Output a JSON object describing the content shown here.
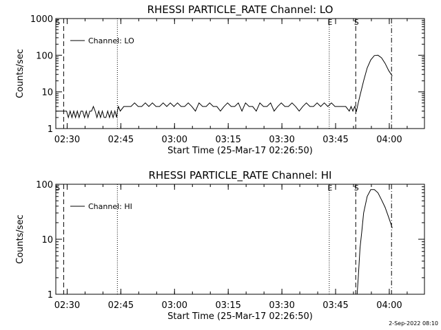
{
  "timestamp": "2-Sep-2022 08:10",
  "chart_data": [
    {
      "type": "line",
      "title": "RHESSI PARTICLE_RATE Channel: LO",
      "xlabel": "Start Time (25-Mar-17 02:26:50)",
      "ylabel": "Counts/sec",
      "x_tick_labels": [
        "02:30",
        "02:45",
        "03:00",
        "03:15",
        "03:30",
        "03:45",
        "04:00"
      ],
      "x_tick_minutes": [
        3.17,
        18.17,
        33.17,
        48.17,
        63.17,
        78.17,
        93.17
      ],
      "xlim_minutes": [
        0,
        103
      ],
      "y_scale": "log",
      "ylim": [
        1,
        1000
      ],
      "y_tick_values": [
        1,
        10,
        100,
        1000
      ],
      "y_tick_labels": [
        "1",
        "10",
        "100",
        "1000"
      ],
      "legend": {
        "label": "Channel: LO",
        "position": "top-left"
      },
      "markers": [
        {
          "minute": 0.3,
          "label": "S",
          "style": "solid"
        },
        {
          "minute": 2.2,
          "label": "",
          "style": "dashed"
        },
        {
          "minute": 17.2,
          "label": "",
          "style": "dotted"
        },
        {
          "minute": 76.4,
          "label": "E",
          "style": "dotted"
        },
        {
          "minute": 83.8,
          "label": "S",
          "style": "dashed"
        },
        {
          "minute": 93.8,
          "label": "",
          "style": "dashdot"
        }
      ],
      "series": [
        {
          "name": "Channel: LO",
          "x": [
            0,
            2,
            3,
            3.5,
            4,
            4.5,
            5,
            5.5,
            6,
            6.5,
            7,
            7.5,
            8,
            8.5,
            9,
            9.5,
            10,
            10.5,
            11,
            11.5,
            12,
            12.5,
            13,
            13.5,
            14,
            14.5,
            15,
            15.5,
            16,
            16.5,
            17,
            17.2,
            17.5,
            18,
            19,
            20,
            21,
            22,
            23,
            24,
            25,
            26,
            27,
            28,
            29,
            30,
            31,
            32,
            33,
            34,
            35,
            36,
            37,
            38,
            39,
            40,
            41,
            42,
            43,
            44,
            45,
            46,
            47,
            48,
            49,
            50,
            51,
            52,
            53,
            54,
            55,
            56,
            57,
            58,
            59,
            60,
            61,
            62,
            63,
            64,
            65,
            66,
            67,
            68,
            69,
            70,
            71,
            72,
            73,
            74,
            75,
            76,
            77,
            78,
            79,
            80,
            81,
            82,
            82.5,
            83,
            83.5,
            84,
            84.5,
            85,
            86,
            87,
            88,
            89,
            90,
            91,
            92,
            93,
            94
          ],
          "y": [
            3,
            3,
            3,
            2,
            3,
            2,
            3,
            2,
            3,
            2,
            3,
            3,
            2,
            3,
            2,
            3,
            3,
            4,
            3,
            2,
            3,
            2,
            3,
            2,
            2,
            3,
            2,
            3,
            2,
            3,
            2,
            3,
            4,
            3,
            4,
            4,
            4,
            5,
            4,
            4,
            5,
            4,
            5,
            4,
            4,
            5,
            4,
            5,
            4,
            5,
            4,
            4,
            5,
            4,
            3,
            5,
            4,
            4,
            5,
            4,
            4,
            3,
            4,
            5,
            4,
            4,
            5,
            3,
            5,
            4,
            4,
            3,
            5,
            4,
            4,
            5,
            3,
            4,
            5,
            4,
            4,
            5,
            4,
            3,
            4,
            5,
            4,
            4,
            5,
            4,
            5,
            4,
            5,
            4,
            4,
            4,
            4,
            3,
            4,
            3,
            4,
            3,
            5,
            8,
            20,
            45,
            75,
            98,
            100,
            85,
            60,
            38,
            27
          ]
        }
      ]
    },
    {
      "type": "line",
      "title": "RHESSI PARTICLE_RATE Channel: HI",
      "xlabel": "Start Time (25-Mar-17 02:26:50)",
      "ylabel": "Counts/sec",
      "x_tick_labels": [
        "02:30",
        "02:45",
        "03:00",
        "03:15",
        "03:30",
        "03:45",
        "04:00"
      ],
      "x_tick_minutes": [
        3.17,
        18.17,
        33.17,
        48.17,
        63.17,
        78.17,
        93.17
      ],
      "xlim_minutes": [
        0,
        103
      ],
      "y_scale": "log",
      "ylim": [
        1,
        100
      ],
      "y_tick_values": [
        1,
        10,
        100
      ],
      "y_tick_labels": [
        "1",
        "10",
        "100"
      ],
      "legend": {
        "label": "Channel: HI",
        "position": "top-left"
      },
      "markers": [
        {
          "minute": 0.3,
          "label": "S",
          "style": "solid"
        },
        {
          "minute": 2.2,
          "label": "",
          "style": "dashed"
        },
        {
          "minute": 17.2,
          "label": "",
          "style": "dotted"
        },
        {
          "minute": 76.4,
          "label": "E",
          "style": "dotted"
        },
        {
          "minute": 83.8,
          "label": "S",
          "style": "dashed"
        },
        {
          "minute": 93.8,
          "label": "",
          "style": "dashdot"
        }
      ],
      "series": [
        {
          "name": "Channel: HI",
          "x": [
            84.2,
            84.5,
            85,
            85.5,
            86,
            87,
            88,
            89,
            90,
            91,
            92,
            93,
            94
          ],
          "y": [
            1,
            2,
            7,
            14,
            30,
            60,
            80,
            80,
            70,
            52,
            38,
            25,
            16
          ]
        }
      ]
    }
  ]
}
